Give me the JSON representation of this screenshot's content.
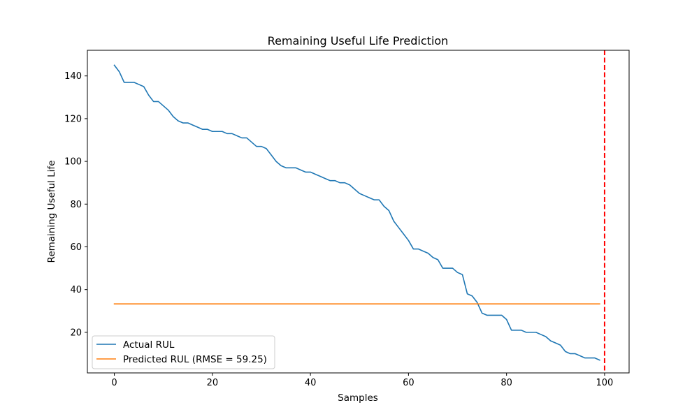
{
  "chart_data": {
    "type": "line",
    "title": "Remaining Useful Life Prediction",
    "xlabel": "Samples",
    "ylabel": "Remaining Useful Life",
    "xlim": [
      -5.5,
      105
    ],
    "ylim": [
      1,
      152
    ],
    "x_ticks": [
      0,
      20,
      40,
      60,
      80,
      100
    ],
    "y_ticks": [
      20,
      40,
      60,
      80,
      100,
      120,
      140
    ],
    "grid": false,
    "legend_position": "lower-left",
    "series": [
      {
        "name": "Actual RUL",
        "color": "#1f77b4",
        "style": "solid",
        "x": [
          0,
          1,
          2,
          3,
          4,
          5,
          6,
          7,
          8,
          9,
          10,
          11,
          12,
          13,
          14,
          15,
          16,
          17,
          18,
          19,
          20,
          21,
          22,
          23,
          24,
          25,
          26,
          27,
          28,
          29,
          30,
          31,
          32,
          33,
          34,
          35,
          36,
          37,
          38,
          39,
          40,
          41,
          42,
          43,
          44,
          45,
          46,
          47,
          48,
          49,
          50,
          51,
          52,
          53,
          54,
          55,
          56,
          57,
          58,
          59,
          60,
          61,
          62,
          63,
          64,
          65,
          66,
          67,
          68,
          69,
          70,
          71,
          72,
          73,
          74,
          75,
          76,
          77,
          78,
          79,
          80,
          81,
          82,
          83,
          84,
          85,
          86,
          87,
          88,
          89,
          90,
          91,
          92,
          93,
          94,
          95,
          96,
          97,
          98,
          99
        ],
        "values": [
          145,
          142,
          137,
          137,
          137,
          136,
          135,
          131,
          128,
          128,
          126,
          124,
          121,
          119,
          118,
          118,
          117,
          116,
          115,
          115,
          114,
          114,
          114,
          113,
          113,
          112,
          111,
          111,
          109,
          107,
          107,
          106,
          103,
          100,
          98,
          97,
          97,
          97,
          96,
          95,
          95,
          94,
          93,
          92,
          91,
          91,
          90,
          90,
          89,
          87,
          85,
          84,
          83,
          82,
          82,
          79,
          77,
          72,
          69,
          66,
          63,
          59,
          59,
          58,
          57,
          55,
          54,
          50,
          50,
          50,
          48,
          47,
          38,
          37,
          34,
          29,
          28,
          28,
          28,
          28,
          26,
          21,
          21,
          21,
          20,
          20,
          20,
          19,
          18,
          16,
          15,
          14,
          11,
          10,
          10,
          9,
          8,
          8,
          8,
          7
        ]
      },
      {
        "name": "Predicted RUL (RMSE = 59.25)",
        "color": "#ff7f0e",
        "style": "solid",
        "x": [
          0,
          99
        ],
        "values": [
          33.3,
          33.3
        ]
      }
    ],
    "vlines": [
      {
        "x": 100,
        "color": "#ff0000",
        "style": "dashed"
      }
    ]
  }
}
